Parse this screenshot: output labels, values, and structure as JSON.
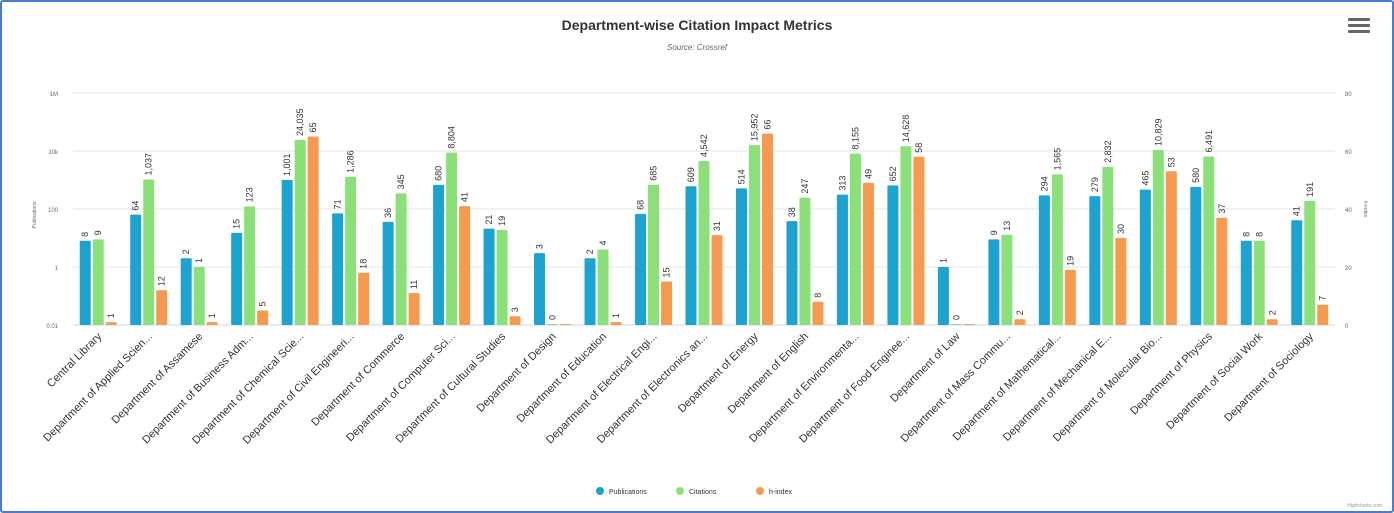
{
  "title": "Department-wise Citation Impact Metrics",
  "subtitle": "Source: Crossref",
  "credit": "Highcharts.com",
  "colors": {
    "Publications": "#1ca3d0",
    "Citations": "#8ce07a",
    "h-index": "#f59a4f"
  },
  "chart_data": {
    "type": "bar",
    "title": "Department-wise Citation Impact Metrics",
    "subtitle": "Source: Crossref",
    "ylabel_left": "Publications",
    "ylabel_right": "h-index",
    "left_axis": {
      "scale": "log",
      "ticks": [
        "0.01",
        "1",
        "100",
        "10k",
        "1M"
      ],
      "ylim": [
        0.01,
        1000000
      ]
    },
    "right_axis": {
      "scale": "linear",
      "ticks": [
        "0",
        "20",
        "40",
        "60",
        "80"
      ],
      "ylim": [
        0,
        80
      ]
    },
    "legend_position": "bottom-center",
    "categories": [
      "Central Library",
      "Department of Applied Scien...",
      "Department of Assamese",
      "Department of Business Adm...",
      "Department of Chemical Scie...",
      "Department of Civil Engineeri...",
      "Department of Commerce",
      "Department of Computer Sci...",
      "Department of Cultural Studies",
      "Department of Design",
      "Department of Education",
      "Department of Electrical Engi...",
      "Department of Electronics an...",
      "Department of Energy",
      "Department of English",
      "Department of Environmenta...",
      "Department of Food Enginee...",
      "Department of Law",
      "Department of Mass Commu...",
      "Department of Mathematical...",
      "Department of Mechanical E...",
      "Department of Molecular Bio...",
      "Department of Physics",
      "Department of Social Work",
      "Department of Sociology"
    ],
    "series": [
      {
        "name": "Publications",
        "axis": "left",
        "values": [
          8,
          64,
          2,
          15,
          1001,
          71,
          36,
          680,
          21,
          3,
          2,
          68,
          609,
          514,
          38,
          313,
          652,
          1,
          9,
          294,
          279,
          465,
          580,
          8,
          41
        ],
        "labels": [
          "8",
          "64",
          "2",
          "15",
          "1,001",
          "71",
          "36",
          "680",
          "21",
          "3",
          "2",
          "68",
          "609",
          "514",
          "38",
          "313",
          "652",
          "1",
          "9",
          "294",
          "279",
          "465",
          "580",
          "8",
          "41"
        ]
      },
      {
        "name": "Citations",
        "axis": "left",
        "values": [
          9,
          1037,
          1,
          123,
          24035,
          1286,
          345,
          8804,
          19,
          0,
          4,
          685,
          4542,
          15952,
          247,
          8155,
          14628,
          0,
          13,
          1565,
          2832,
          10829,
          6491,
          8,
          191
        ],
        "labels": [
          "9",
          "1,037",
          "1",
          "123",
          "24,035",
          "1,286",
          "345",
          "8,804",
          "19",
          "0",
          "4",
          "685",
          "4,542",
          "15,952",
          "247",
          "8,155",
          "14,628",
          "0",
          "13",
          "1,565",
          "2,832",
          "10,829",
          "6,491",
          "8",
          "191"
        ]
      },
      {
        "name": "h-index",
        "axis": "right",
        "values": [
          1,
          12,
          1,
          5,
          65,
          18,
          11,
          41,
          3,
          0,
          1,
          15,
          31,
          66,
          8,
          49,
          58,
          0,
          2,
          19,
          30,
          53,
          37,
          2,
          7
        ],
        "labels": [
          "1",
          "12",
          "1",
          "5",
          "65",
          "18",
          "11",
          "41",
          "3",
          "",
          "1",
          "15",
          "31",
          "66",
          "8",
          "49",
          "58",
          "",
          "2",
          "19",
          "30",
          "53",
          "37",
          "2",
          "7"
        ]
      }
    ]
  },
  "legend": [
    {
      "name": "Publications",
      "color": "#1ca3d0"
    },
    {
      "name": "Citations",
      "color": "#8ce07a"
    },
    {
      "name": "h-index",
      "color": "#f59a4f"
    }
  ]
}
